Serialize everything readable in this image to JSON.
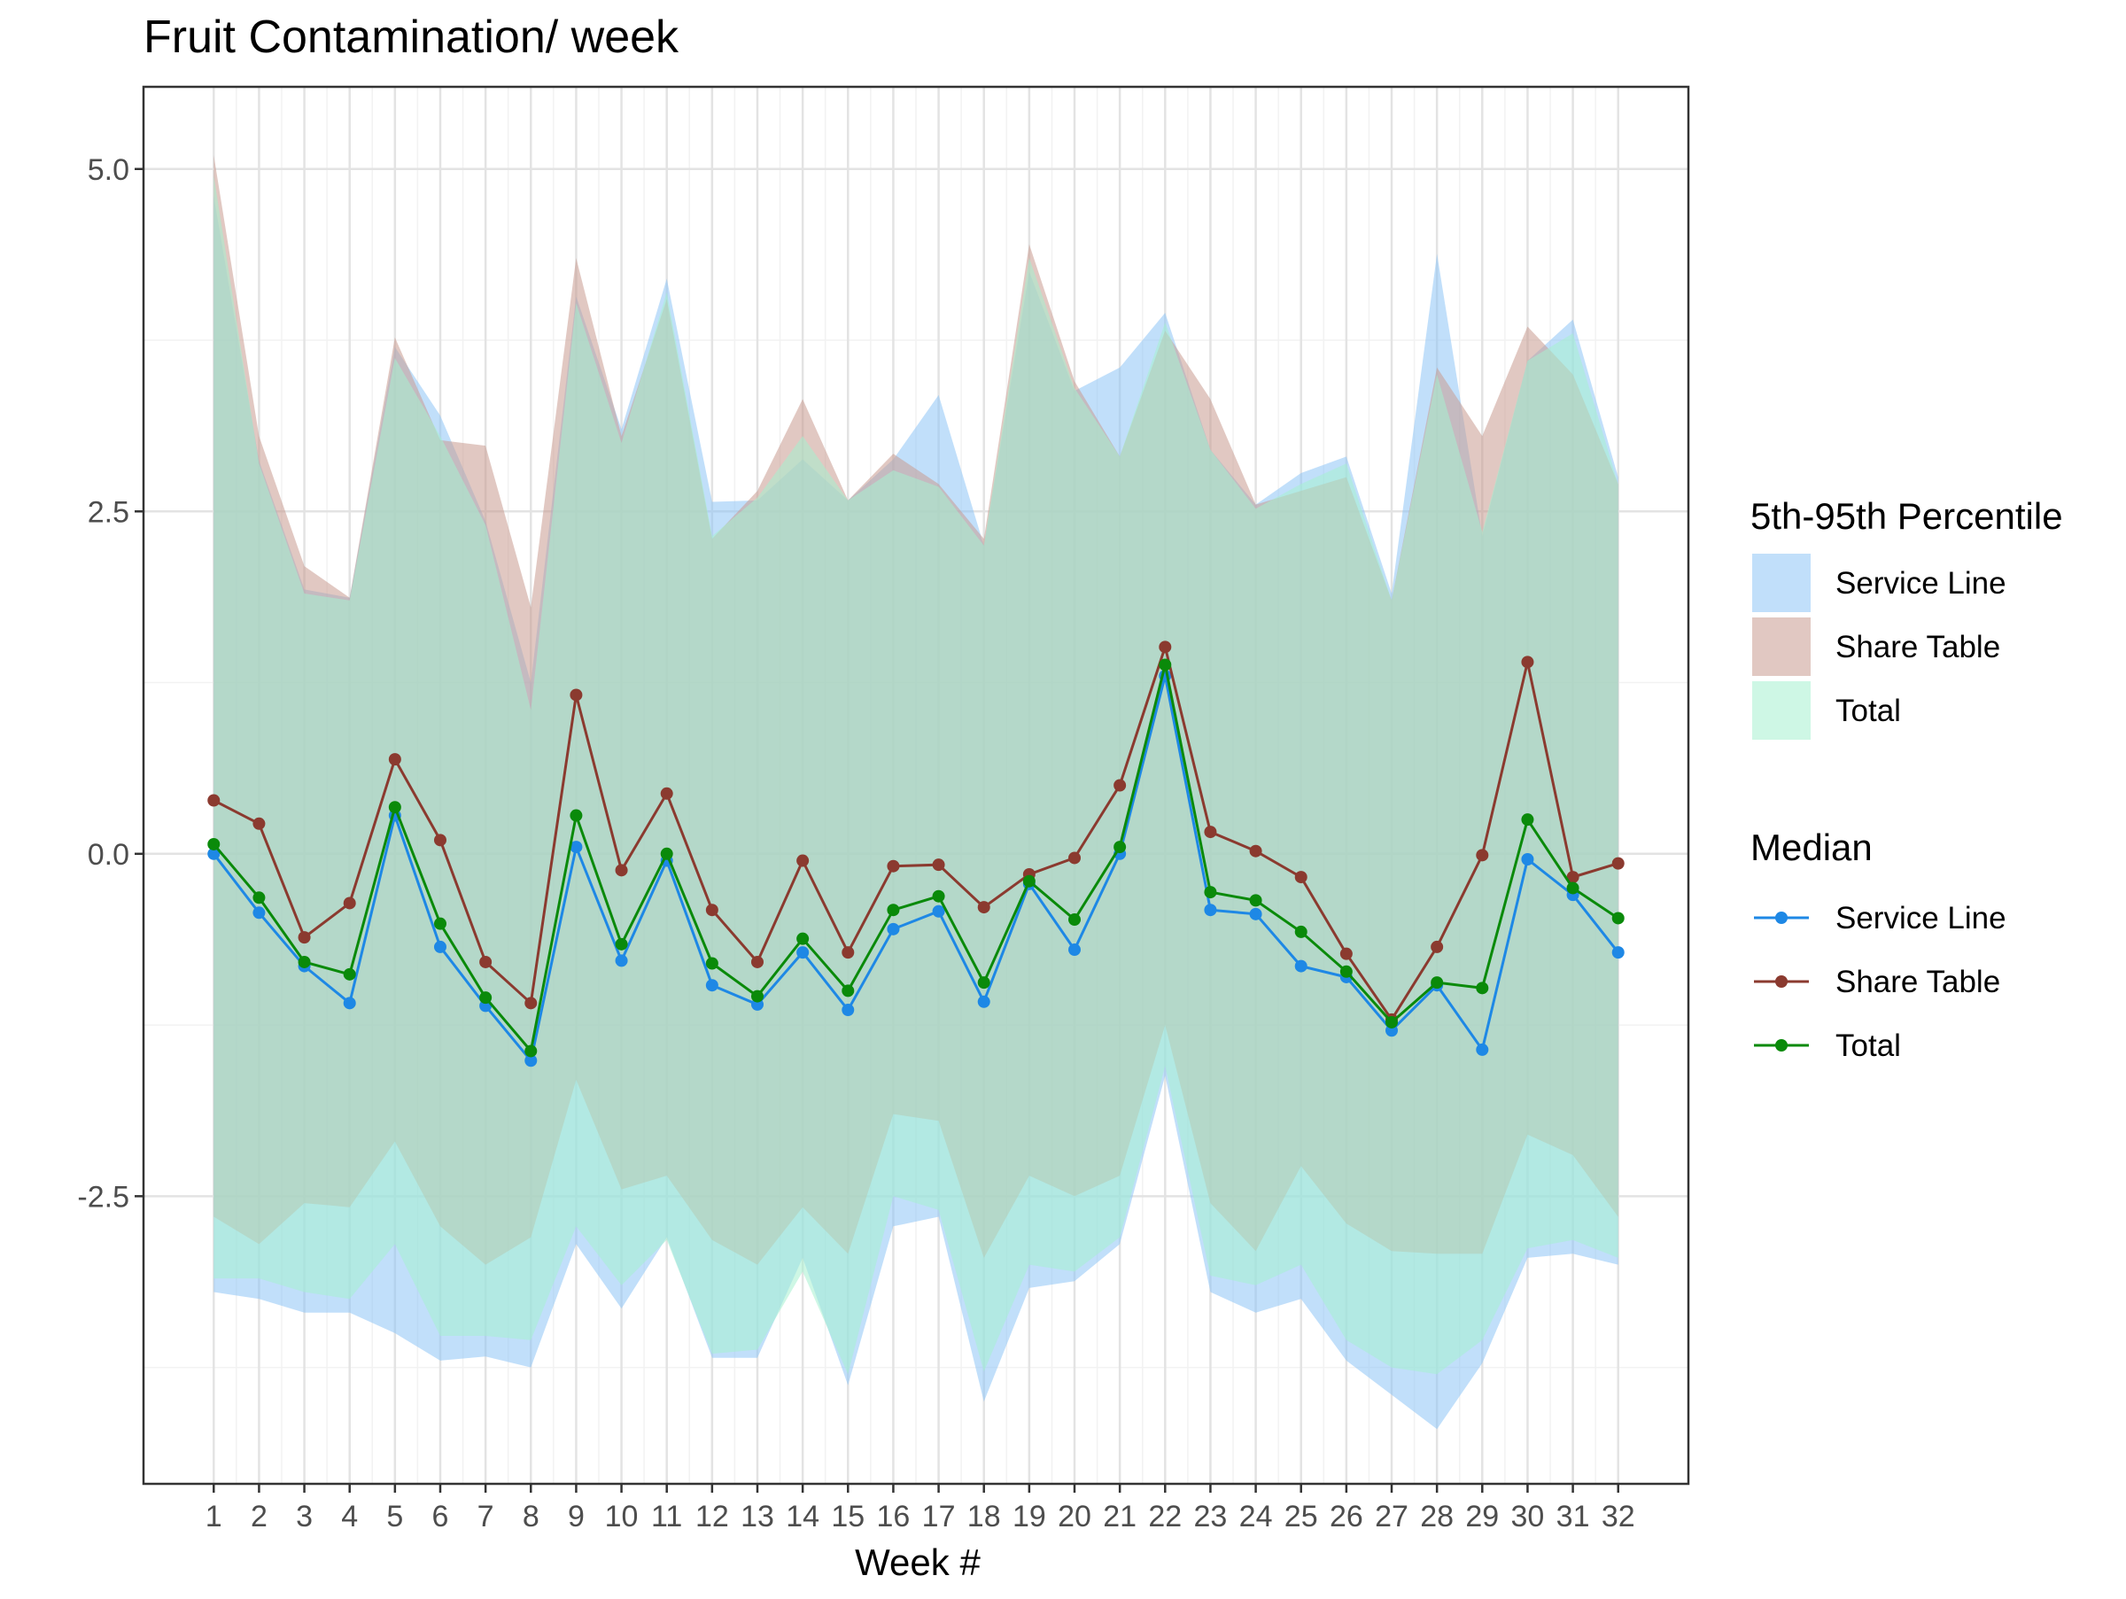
{
  "chart_data": {
    "type": "area",
    "title": "Fruit Contamination/ week",
    "xlabel": "Week #",
    "ylabel": "",
    "x": [
      1,
      2,
      3,
      4,
      5,
      6,
      7,
      8,
      9,
      10,
      11,
      12,
      13,
      14,
      15,
      16,
      17,
      18,
      19,
      20,
      21,
      22,
      23,
      24,
      25,
      26,
      27,
      28,
      29,
      30,
      31,
      32
    ],
    "ylim": [
      -4.6,
      5.6
    ],
    "y_ticks": [
      -2.5,
      0.0,
      2.5,
      5.0
    ],
    "y_tick_labels": [
      "-2.5",
      "0.0",
      "2.5",
      "5.0"
    ],
    "grid": true,
    "legend_position": "right",
    "ribbon_legend_title": "5th-95th Percentile",
    "line_legend_title": "Median",
    "series": [
      {
        "name": "Service Line",
        "color": "#1E88E5",
        "fill": "#8EC5F5",
        "median": [
          0.0,
          -0.43,
          -0.82,
          -1.09,
          0.28,
          -0.68,
          -1.11,
          -1.51,
          0.05,
          -0.78,
          -0.05,
          -0.96,
          -1.1,
          -0.72,
          -1.14,
          -0.55,
          -0.42,
          -1.08,
          -0.22,
          -0.7,
          0.0,
          1.3,
          -0.41,
          -0.44,
          -0.82,
          -0.9,
          -1.29,
          -0.96,
          -1.43,
          -0.04,
          -0.3,
          -0.72
        ],
        "p95": [
          4.8,
          2.87,
          1.93,
          1.87,
          3.7,
          3.2,
          2.43,
          1.25,
          4.07,
          3.1,
          4.2,
          2.57,
          2.58,
          2.88,
          2.58,
          2.88,
          3.35,
          2.25,
          4.25,
          3.38,
          3.55,
          3.95,
          2.95,
          2.55,
          2.78,
          2.9,
          1.9,
          4.38,
          2.32,
          3.6,
          3.9,
          2.75
        ],
        "p05": [
          -3.2,
          -3.25,
          -3.35,
          -3.35,
          -3.5,
          -3.7,
          -3.67,
          -3.75,
          -2.85,
          -3.32,
          -2.8,
          -3.68,
          -3.68,
          -2.95,
          -3.88,
          -2.72,
          -2.65,
          -4.0,
          -3.17,
          -3.12,
          -2.85,
          -1.62,
          -3.2,
          -3.35,
          -3.25,
          -3.7,
          -3.95,
          -4.2,
          -3.72,
          -2.95,
          -2.92,
          -3.0
        ]
      },
      {
        "name": "Share Table",
        "color": "#8B3A2F",
        "fill": "#C89A90",
        "median": [
          0.39,
          0.22,
          -0.61,
          -0.36,
          0.69,
          0.1,
          -0.79,
          -1.09,
          1.16,
          -0.12,
          0.44,
          -0.41,
          -0.79,
          -0.05,
          -0.72,
          -0.09,
          -0.08,
          -0.39,
          -0.15,
          -0.03,
          0.5,
          1.51,
          0.16,
          0.02,
          -0.17,
          -0.73,
          -1.21,
          -0.68,
          -0.01,
          1.4,
          -0.17,
          -0.07
        ],
        "p95": [
          5.1,
          3.05,
          2.1,
          1.87,
          3.77,
          3.02,
          2.98,
          1.8,
          4.35,
          3.05,
          4.05,
          2.3,
          2.65,
          3.32,
          2.58,
          2.92,
          2.7,
          2.3,
          4.45,
          3.45,
          2.9,
          3.82,
          3.32,
          2.55,
          2.65,
          2.75,
          1.85,
          3.55,
          3.05,
          3.85,
          3.5,
          2.7
        ],
        "p05": [
          -2.65,
          -2.85,
          -2.55,
          -2.58,
          -2.1,
          -2.72,
          -3.0,
          -2.8,
          -1.65,
          -2.45,
          -2.35,
          -2.82,
          -3.0,
          -2.58,
          -2.92,
          -1.9,
          -1.95,
          -2.95,
          -2.35,
          -2.5,
          -2.35,
          -1.25,
          -2.55,
          -2.9,
          -2.28,
          -2.7,
          -2.9,
          -2.92,
          -2.92,
          -2.05,
          -2.2,
          -2.65
        ]
      },
      {
        "name": "Total",
        "color": "#0A8A0A",
        "fill": "#A6F0CF",
        "median": [
          0.07,
          -0.32,
          -0.79,
          -0.88,
          0.34,
          -0.51,
          -1.05,
          -1.44,
          0.28,
          -0.66,
          0.0,
          -0.8,
          -1.04,
          -0.62,
          -1.0,
          -0.41,
          -0.31,
          -0.94,
          -0.2,
          -0.48,
          0.05,
          1.38,
          -0.28,
          -0.34,
          -0.57,
          -0.86,
          -1.23,
          -0.94,
          -0.98,
          0.25,
          -0.25,
          -0.47
        ],
        "p95": [
          4.95,
          2.85,
          1.9,
          1.85,
          3.62,
          3.05,
          2.4,
          1.05,
          4.02,
          3.0,
          4.1,
          2.32,
          2.6,
          3.05,
          2.58,
          2.8,
          2.68,
          2.25,
          4.35,
          3.4,
          2.9,
          3.88,
          2.95,
          2.52,
          2.7,
          2.85,
          1.85,
          3.5,
          2.35,
          3.6,
          3.8,
          2.7
        ],
        "p05": [
          -3.1,
          -3.1,
          -3.2,
          -3.25,
          -2.85,
          -3.52,
          -3.52,
          -3.55,
          -2.72,
          -3.15,
          -2.82,
          -3.65,
          -3.62,
          -3.05,
          -3.8,
          -2.5,
          -2.6,
          -3.78,
          -3.0,
          -3.05,
          -2.8,
          -1.55,
          -3.08,
          -3.15,
          -3.0,
          -3.55,
          -3.75,
          -3.8,
          -3.55,
          -2.88,
          -2.82,
          -2.95
        ]
      }
    ]
  }
}
